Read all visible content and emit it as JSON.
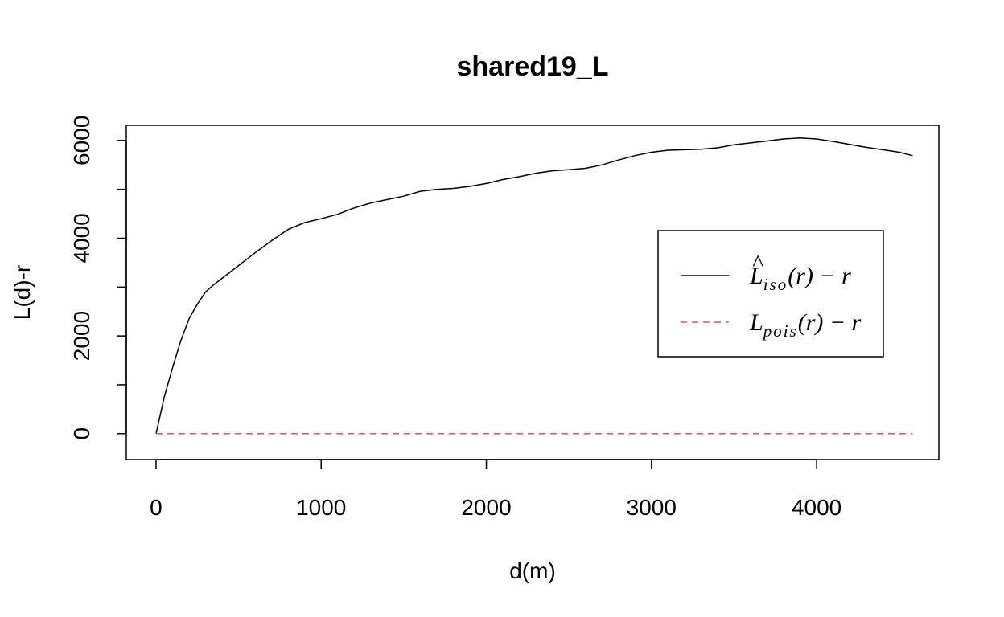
{
  "chart_data": {
    "type": "line",
    "title": "shared19_L",
    "xlabel": "d(m)",
    "ylabel": "L(d)-r",
    "xlim": [
      -180,
      4740
    ],
    "ylim": [
      -530,
      6310
    ],
    "x_ticks": [
      0,
      1000,
      2000,
      3000,
      4000
    ],
    "x_tick_labels": [
      "0",
      "1000",
      "2000",
      "3000",
      "4000"
    ],
    "y_ticks": [
      0,
      1000,
      2000,
      3000,
      4000,
      5000,
      6000
    ],
    "y_tick_labels": [
      "0",
      "",
      "2000",
      "",
      "4000",
      "",
      "6000"
    ],
    "legend_position": "right",
    "grid": false,
    "series": [
      {
        "id": "iso",
        "color": "#000000",
        "dash": "solid",
        "x": [
          0,
          50,
          100,
          150,
          200,
          250,
          300,
          350,
          400,
          500,
          600,
          700,
          800,
          900,
          1000,
          1100,
          1200,
          1300,
          1400,
          1500,
          1600,
          1700,
          1800,
          1900,
          2000,
          2100,
          2200,
          2300,
          2400,
          2500,
          2600,
          2700,
          2800,
          2900,
          3000,
          3100,
          3200,
          3300,
          3400,
          3500,
          3600,
          3700,
          3800,
          3900,
          4000,
          4100,
          4200,
          4300,
          4400,
          4500,
          4580
        ],
        "y": [
          0,
          750,
          1350,
          1900,
          2350,
          2650,
          2900,
          3050,
          3180,
          3440,
          3700,
          3950,
          4180,
          4320,
          4400,
          4490,
          4620,
          4720,
          4790,
          4860,
          4960,
          5000,
          5020,
          5060,
          5120,
          5200,
          5260,
          5330,
          5380,
          5400,
          5430,
          5500,
          5600,
          5690,
          5760,
          5800,
          5810,
          5820,
          5850,
          5910,
          5950,
          5990,
          6030,
          6050,
          6030,
          5980,
          5920,
          5860,
          5810,
          5760,
          5690
        ]
      },
      {
        "id": "pois",
        "color": "#DF536B",
        "dash": "dashed",
        "x": [
          0,
          4580
        ],
        "y": [
          0,
          0
        ]
      }
    ],
    "legend": [
      {
        "series": "iso",
        "main": "L",
        "sub": "iso",
        "tail": "(r) − r",
        "hat": true
      },
      {
        "series": "pois",
        "main": "L",
        "sub": "pois",
        "tail": "(r) − r",
        "hat": false
      }
    ]
  }
}
